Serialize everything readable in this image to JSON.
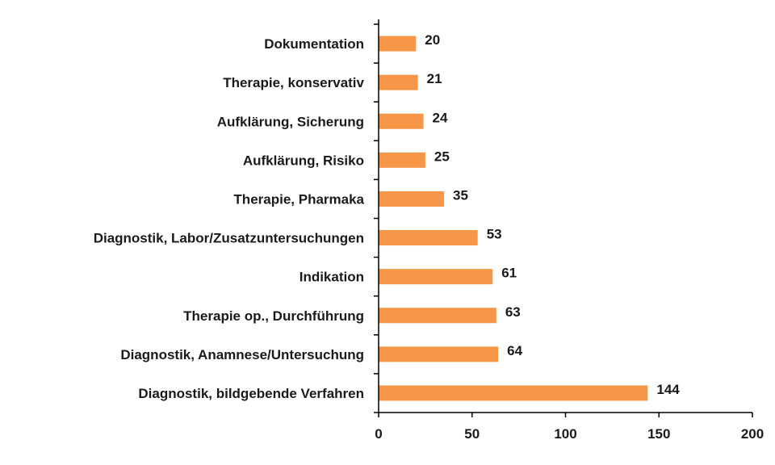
{
  "chart_data": {
    "type": "bar",
    "orientation": "horizontal",
    "categories": [
      "Dokumentation",
      "Therapie, konservativ",
      "Aufklärung, Sicherung",
      "Aufklärung, Risiko",
      "Therapie, Pharmaka",
      "Diagnostik, Labor/Zusatzuntersuchungen",
      "Indikation",
      "Therapie op., Durchführung",
      "Diagnostik, Anamnese/Untersuchung",
      "Diagnostik, bildgebende Verfahren"
    ],
    "values": [
      20,
      21,
      24,
      25,
      35,
      53,
      61,
      63,
      64,
      144
    ],
    "value_labels": [
      "20",
      "21",
      "24",
      "25",
      "35",
      "53",
      "61",
      "63",
      "64",
      "144"
    ],
    "xlim": [
      0,
      200
    ],
    "xticks": [
      "0",
      "50",
      "100",
      "150",
      "200"
    ],
    "xtick_values": [
      0,
      50,
      100,
      150,
      200
    ],
    "title": "",
    "xlabel": "",
    "ylabel": "",
    "grid": false,
    "legend": "none",
    "bar_color": "#F79646"
  }
}
